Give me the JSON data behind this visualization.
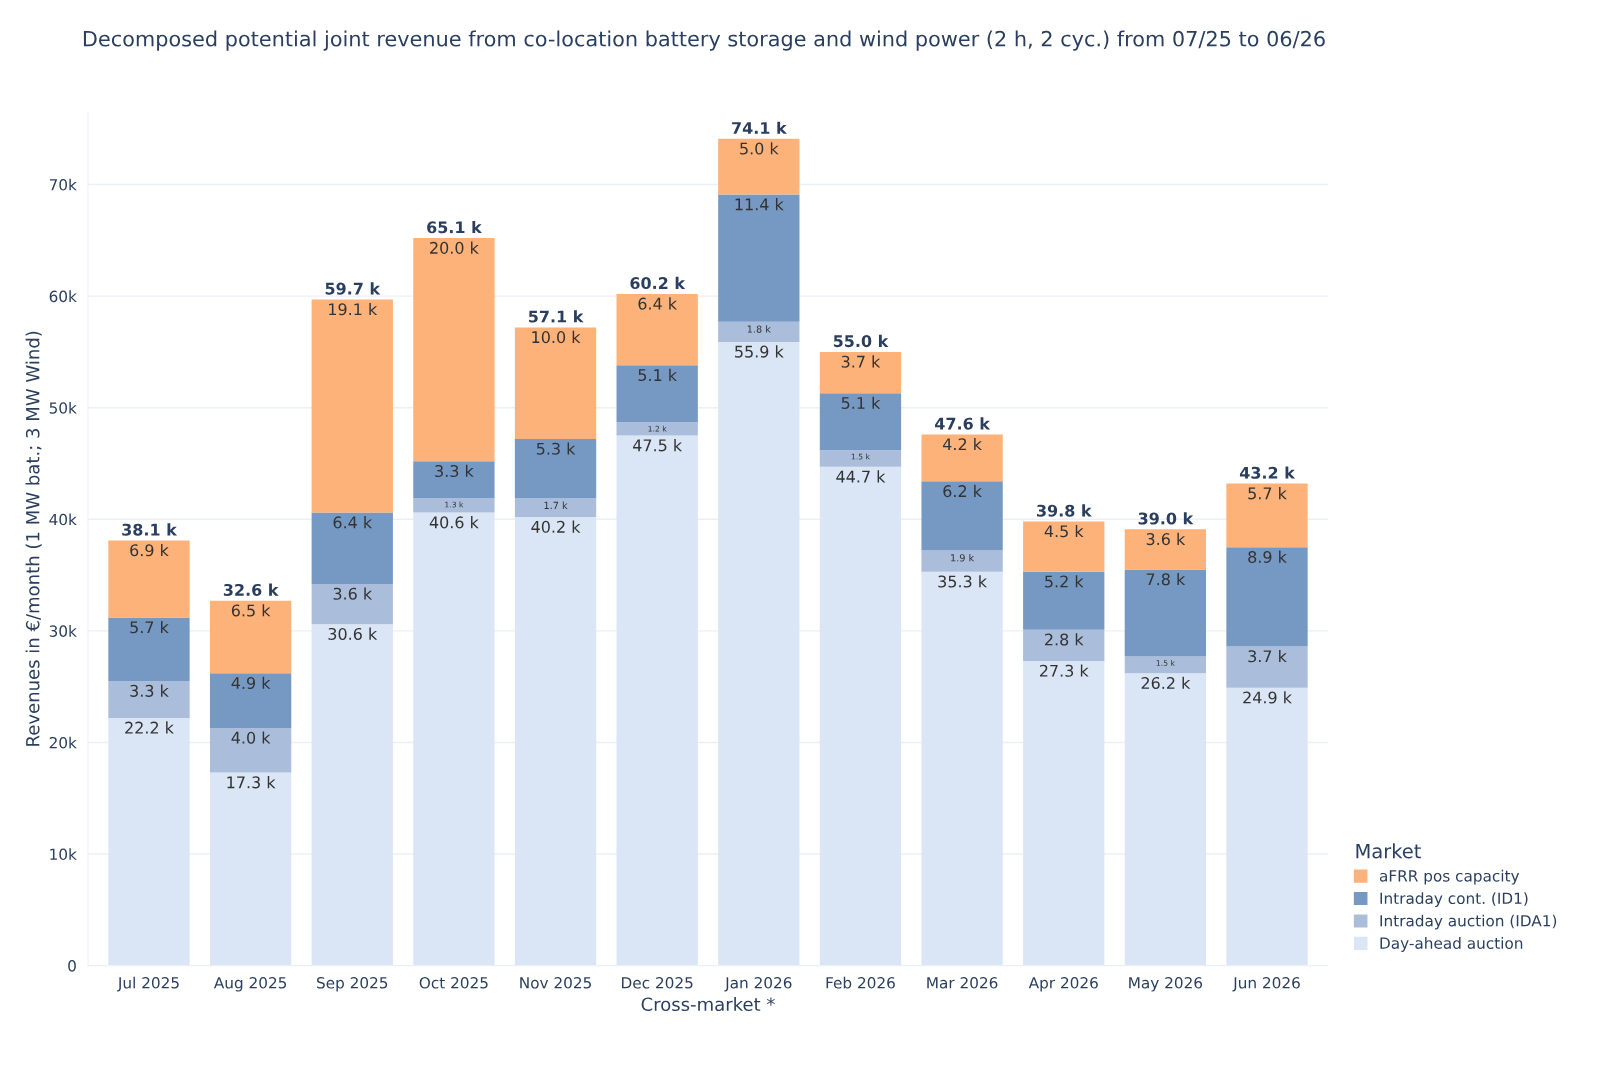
{
  "chart_data": {
    "type": "bar",
    "stacked": true,
    "title": "Decomposed potential joint revenue from co-location battery storage and wind power (2 h, 2 cyc.) from 07/25 to 06/26",
    "xlabel": "Cross-market *",
    "ylabel": "Revenues in €/month (1 MW bat.; 3 MW Wind)",
    "legend_title": "Market",
    "legend": "bottom right",
    "grid": "y",
    "categories": [
      "Jul 2025",
      "Aug 2025",
      "Sep 2025",
      "Oct 2025",
      "Nov 2025",
      "Dec 2025",
      "Jan 2026",
      "Feb 2026",
      "Mar 2026",
      "Apr 2026",
      "May 2026",
      "Jun 2026"
    ],
    "ylim": [
      0,
      76500
    ],
    "yticks": [
      0,
      {
        "value": 10000,
        "label": "10k"
      },
      {
        "value": 20000,
        "label": "20k"
      },
      {
        "value": 30000,
        "label": "30k"
      },
      {
        "value": 40000,
        "label": "40k"
      },
      {
        "value": 50000,
        "label": "50k"
      },
      {
        "value": 60000,
        "label": "60k"
      },
      {
        "value": 70000,
        "label": "70k"
      }
    ],
    "series": [
      {
        "name": "Day-ahead auction",
        "color": "#dae6f6",
        "values": [
          22200,
          17300,
          30600,
          40600,
          40200,
          47500,
          55900,
          44700,
          35300,
          27300,
          26200,
          24900
        ],
        "value_labels": [
          "22.2 k",
          "17.3 k",
          "30.6 k",
          "40.6 k",
          "40.2 k",
          "47.5 k",
          "55.9 k",
          "44.7 k",
          "35.3 k",
          "27.3 k",
          "26.2 k",
          "24.9 k"
        ]
      },
      {
        "name": "Intraday auction (IDA1)",
        "color": "#aabdda",
        "values": [
          3300,
          4000,
          3600,
          1300,
          1700,
          1200,
          1800,
          1500,
          1900,
          2800,
          1500,
          3700
        ],
        "value_labels": [
          "3.3 k",
          "4.0 k",
          "3.6 k",
          "1.3 k",
          "1.7 k",
          "1.2 k",
          "1.8 k",
          "1.5 k",
          "1.9 k",
          "2.8 k",
          "1.5 k",
          "3.7 k"
        ]
      },
      {
        "name": "Intraday cont. (ID1)",
        "color": "#7699c3",
        "values": [
          5700,
          4900,
          6400,
          3300,
          5300,
          5100,
          11400,
          5100,
          6200,
          5200,
          7800,
          8900
        ],
        "value_labels": [
          "5.7 k",
          "4.9 k",
          "6.4 k",
          "3.3 k",
          "5.3 k",
          "5.1 k",
          "11.4 k",
          "5.1 k",
          "6.2 k",
          "5.2 k",
          "7.8 k",
          "8.9 k"
        ]
      },
      {
        "name": "aFRR pos capacity",
        "color": "#fdb279",
        "values": [
          6900,
          6500,
          19100,
          20000,
          10000,
          6400,
          5000,
          3700,
          4200,
          4500,
          3600,
          5700
        ],
        "value_labels": [
          "6.9 k",
          "6.5 k",
          "19.1 k",
          "20.0 k",
          "10.0 k",
          "6.4 k",
          "5.0 k",
          "3.7 k",
          "4.2 k",
          "4.5 k",
          "3.6 k",
          "5.7 k"
        ]
      }
    ],
    "totals": [
      "38.1 k",
      "32.6 k",
      "59.7 k",
      "65.1 k",
      "57.1 k",
      "60.2 k",
      "74.1 k",
      "55.0 k",
      "47.6 k",
      "39.8 k",
      "39.0 k",
      "43.2 k"
    ]
  }
}
